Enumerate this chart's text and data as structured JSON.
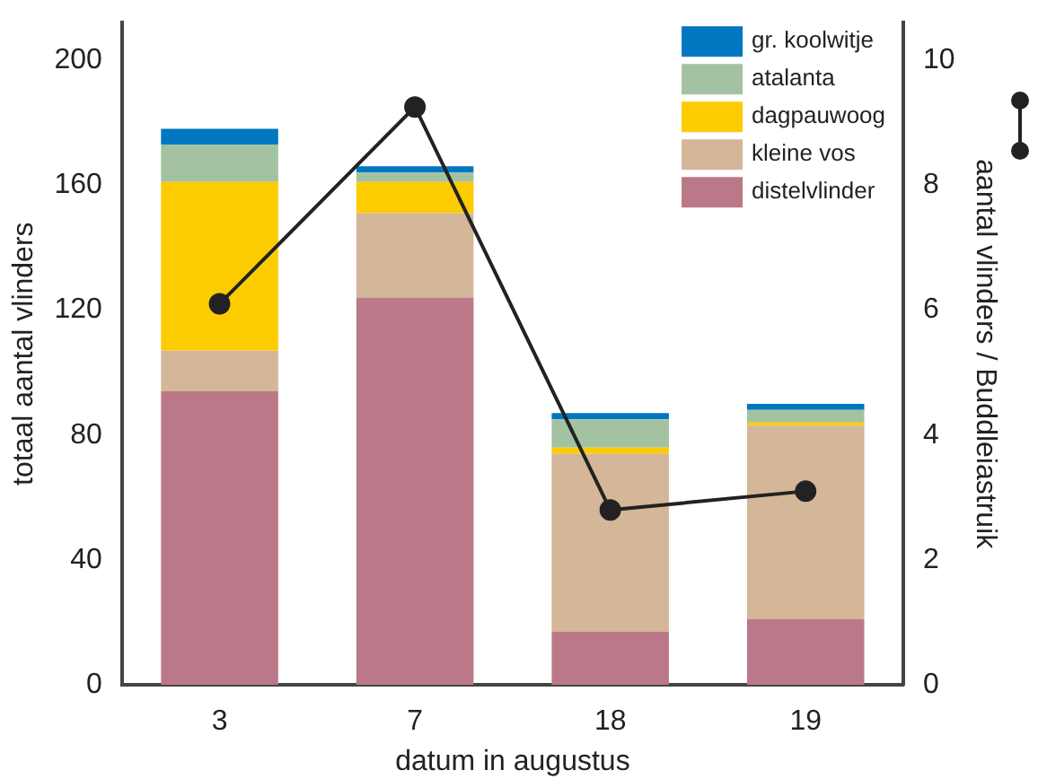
{
  "chart_data": {
    "type": "bar",
    "stacked": true,
    "xlabel": "datum in augustus",
    "ylabel": "totaal aantal vlinders",
    "y2label": "aantal vlinders / Buddleiastruik",
    "categories": [
      "3",
      "7",
      "18",
      "19"
    ],
    "series": [
      {
        "name": "distelvlinder",
        "color": "#bb7888",
        "values": [
          94,
          124,
          17,
          21
        ]
      },
      {
        "name": "kleine vos",
        "color": "#d4b699",
        "values": [
          13,
          27,
          57,
          62
        ]
      },
      {
        "name": "dagpauwoog",
        "color": "#fccc00",
        "values": [
          54,
          10,
          2,
          1
        ]
      },
      {
        "name": "atalanta",
        "color": "#a3c2a2",
        "values": [
          12,
          3,
          9,
          4
        ]
      },
      {
        "name": "gr. koolwitje",
        "color": "#0077c0",
        "values": [
          5,
          2,
          2,
          2
        ]
      },
      {
        "type": "line",
        "axis": "y2",
        "color": "#222222",
        "values": [
          6.1,
          9.25,
          2.8,
          3.1
        ]
      }
    ],
    "ylim": [
      0,
      212
    ],
    "yticks": [
      0,
      40,
      80,
      120,
      160,
      200
    ],
    "y2lim": [
      0,
      10.6
    ],
    "y2ticks": [
      0,
      2,
      4,
      6,
      8,
      10
    ],
    "grid": false,
    "legend": "top right",
    "marker": "circle",
    "line_style": "solid"
  }
}
